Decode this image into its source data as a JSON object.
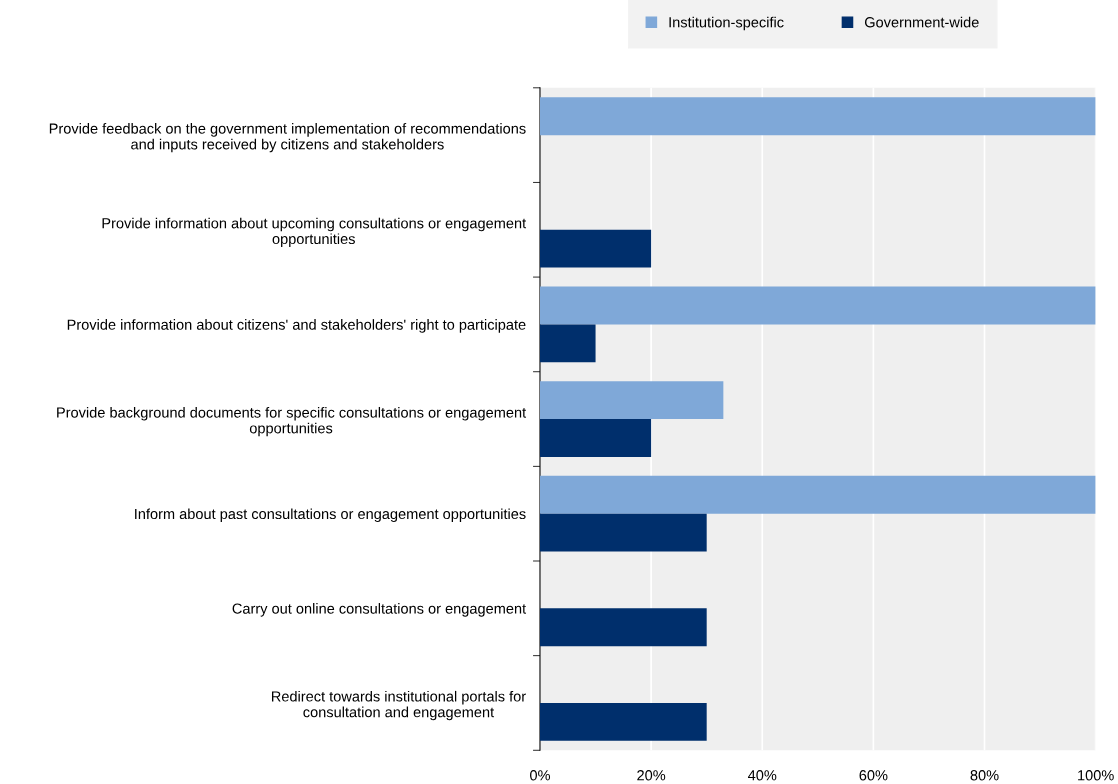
{
  "chart_data": {
    "type": "bar",
    "orientation": "horizontal",
    "categories": [
      "Provide feedback on the government implementation of recommendations\nand inputs received by citizens and stakeholders",
      "Provide information about upcoming consultations or engagement\nopportunities",
      "Provide information about citizens' and stakeholders' right to participate",
      "Provide background documents for specific consultations or engagement\nopportunities",
      "Inform about past consultations or engagement opportunities",
      "Carry out online consultations or engagement",
      "Redirect towards institutional portals for\nconsultation and engagement"
    ],
    "series": [
      {
        "name": "Institution-specific",
        "color": "#7fa8d8",
        "values": [
          100,
          null,
          100,
          33,
          100,
          null,
          null
        ]
      },
      {
        "name": "Government-wide",
        "color": "#002f6c",
        "values": [
          null,
          20,
          10,
          20,
          30,
          30,
          30
        ]
      }
    ],
    "xlim": [
      0,
      100
    ],
    "xticks": [
      {
        "value": 0,
        "label": "0%"
      },
      {
        "value": 20,
        "label": "20%"
      },
      {
        "value": 40,
        "label": "40%"
      },
      {
        "value": 60,
        "label": "60%"
      },
      {
        "value": 80,
        "label": "80%"
      },
      {
        "value": 100,
        "label": "100%"
      }
    ],
    "grid": "x",
    "legend": "top"
  }
}
